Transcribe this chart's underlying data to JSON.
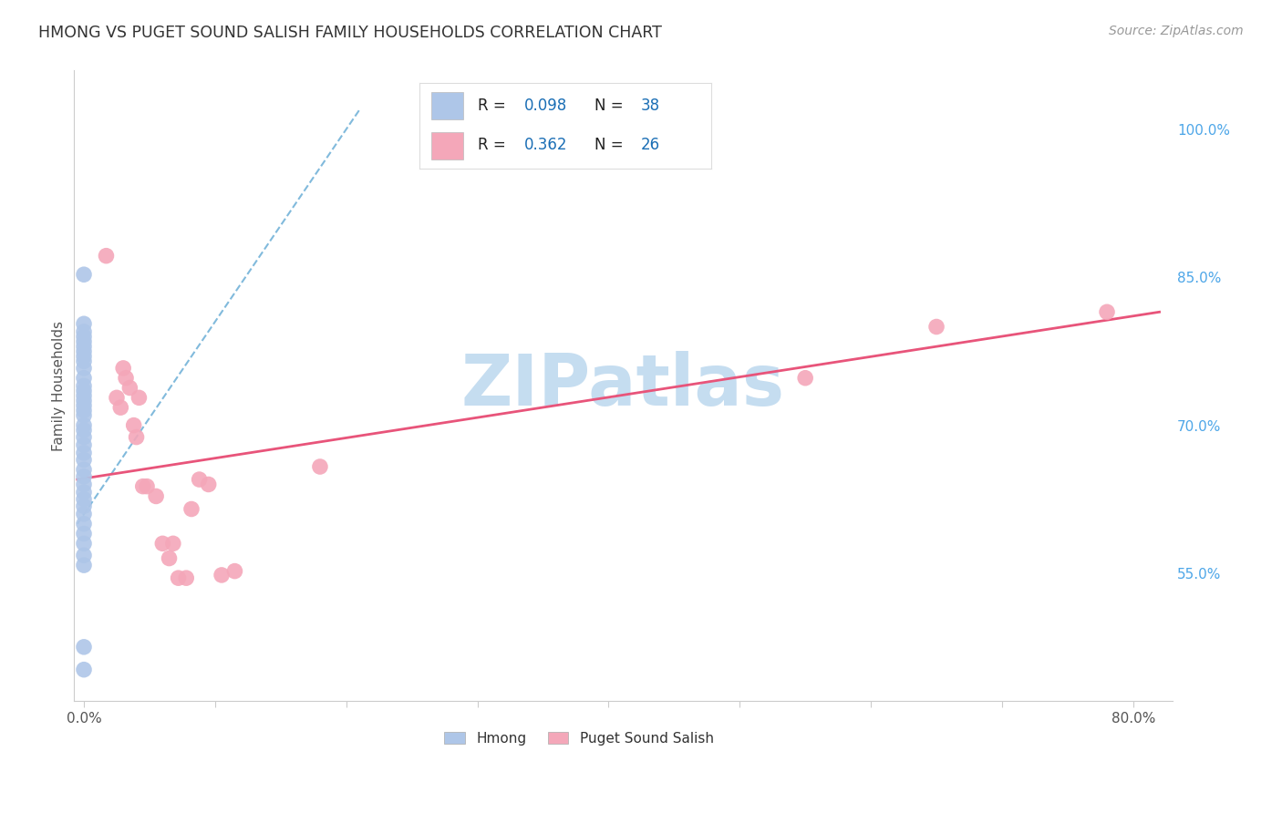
{
  "title": "HMONG VS PUGET SOUND SALISH FAMILY HOUSEHOLDS CORRELATION CHART",
  "source": "Source: ZipAtlas.com",
  "ylabel": "Family Households",
  "x_ticks": [
    0.0,
    0.1,
    0.2,
    0.3,
    0.4,
    0.5,
    0.6,
    0.7,
    0.8
  ],
  "x_tick_labels": [
    "0.0%",
    "",
    "",
    "",
    "",
    "",
    "",
    "",
    "80.0%"
  ],
  "y_tick_labels_right": [
    "100.0%",
    "85.0%",
    "70.0%",
    "55.0%"
  ],
  "y_ticks_right": [
    1.0,
    0.85,
    0.7,
    0.55
  ],
  "xlim": [
    -0.008,
    0.83
  ],
  "ylim": [
    0.42,
    1.06
  ],
  "hmong_color": "#aec6e8",
  "salish_color": "#f4a7b9",
  "hmong_trendline_color": "#6baed6",
  "salish_trendline_color": "#e8547a",
  "hmong_R": 0.098,
  "hmong_N": 38,
  "salish_R": 0.362,
  "salish_N": 26,
  "hmong_x": [
    0.0,
    0.0,
    0.0,
    0.0,
    0.0,
    0.0,
    0.0,
    0.0,
    0.0,
    0.0,
    0.0,
    0.0,
    0.0,
    0.0,
    0.0,
    0.0,
    0.0,
    0.0,
    0.0,
    0.0,
    0.0,
    0.0,
    0.0,
    0.0,
    0.0,
    0.0,
    0.0,
    0.0,
    0.0,
    0.0,
    0.0,
    0.0,
    0.0,
    0.0,
    0.0,
    0.0,
    0.0,
    0.0
  ],
  "hmong_y": [
    0.853,
    0.803,
    0.795,
    0.79,
    0.785,
    0.78,
    0.775,
    0.77,
    0.765,
    0.758,
    0.748,
    0.74,
    0.735,
    0.73,
    0.725,
    0.72,
    0.715,
    0.71,
    0.7,
    0.695,
    0.688,
    0.68,
    0.672,
    0.665,
    0.655,
    0.648,
    0.64,
    0.632,
    0.625,
    0.618,
    0.61,
    0.6,
    0.59,
    0.58,
    0.568,
    0.558,
    0.475,
    0.452
  ],
  "salish_x": [
    0.017,
    0.025,
    0.028,
    0.03,
    0.032,
    0.035,
    0.038,
    0.04,
    0.042,
    0.045,
    0.048,
    0.055,
    0.06,
    0.065,
    0.068,
    0.072,
    0.078,
    0.082,
    0.088,
    0.095,
    0.105,
    0.115,
    0.18,
    0.55,
    0.65,
    0.78
  ],
  "salish_y": [
    0.872,
    0.728,
    0.718,
    0.758,
    0.748,
    0.738,
    0.7,
    0.688,
    0.728,
    0.638,
    0.638,
    0.628,
    0.58,
    0.565,
    0.58,
    0.545,
    0.545,
    0.615,
    0.645,
    0.64,
    0.548,
    0.552,
    0.658,
    0.748,
    0.8,
    0.815
  ],
  "hmong_trend_x0": -0.005,
  "hmong_trend_y0": 0.6,
  "hmong_trend_x1": 0.21,
  "hmong_trend_y1": 1.02,
  "salish_trend_x0": -0.005,
  "salish_trend_y0": 0.645,
  "salish_trend_x1": 0.82,
  "salish_trend_y1": 0.815,
  "watermark": "ZIPatlas",
  "watermark_color": "#c5ddf0",
  "background_color": "#ffffff",
  "grid_color": "#e8e0f0",
  "legend_R_color": "#1a6eb5",
  "legend_N_color": "#1a6eb5",
  "legend_text_color": "#222222"
}
